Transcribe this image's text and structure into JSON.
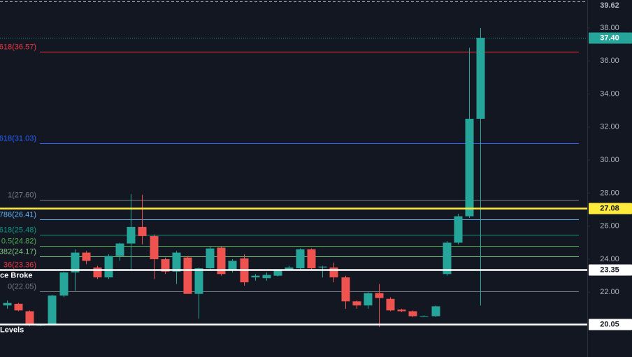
{
  "chart_data": {
    "type": "candlestick",
    "up_color": "#26a69a",
    "down_color": "#ef5350",
    "ylim": [
      18.08,
      39.69
    ],
    "yticks": [
      {
        "value": 22,
        "label": "22.00"
      },
      {
        "value": 24,
        "label": "24.00"
      },
      {
        "value": 26,
        "label": "26.00"
      },
      {
        "value": 28,
        "label": "28.00"
      },
      {
        "value": 30,
        "label": "30.00"
      },
      {
        "value": 32,
        "label": "32.00"
      },
      {
        "value": 34,
        "label": "34.00"
      },
      {
        "value": 36,
        "label": "36.00"
      },
      {
        "value": 38,
        "label": "38.00"
      }
    ],
    "grid": false,
    "open": [
      21.2,
      21.3,
      20.85,
      20.0,
      20.0,
      21.8,
      23.2,
      24.4,
      23.5,
      22.9,
      24.2,
      24.95,
      25.95,
      25.4,
      24.0,
      23.25,
      24.1,
      21.9,
      23.45,
      24.7,
      23.3,
      24.05,
      22.9,
      22.85,
      23.0,
      23.35,
      23.45,
      24.6,
      23.5,
      23.5,
      22.9,
      21.45,
      21.2,
      21.95,
      21.6,
      20.95,
      20.85,
      20.55,
      20.55,
      23.1,
      25.0,
      26.6,
      32.5
    ],
    "high": [
      21.5,
      21.35,
      20.9,
      20.05,
      21.85,
      23.25,
      24.6,
      24.5,
      23.6,
      24.3,
      25.0,
      27.95,
      27.9,
      25.5,
      24.1,
      24.5,
      24.2,
      23.5,
      24.75,
      24.75,
      24.0,
      24.3,
      23.1,
      23.2,
      23.4,
      23.6,
      24.65,
      24.65,
      23.6,
      23.8,
      23.0,
      21.5,
      22.0,
      22.5,
      21.7,
      21.0,
      20.9,
      20.6,
      21.2,
      25.1,
      26.75,
      36.8,
      38.0
    ],
    "low": [
      21.0,
      20.85,
      19.95,
      19.95,
      20.0,
      21.7,
      22.1,
      23.7,
      22.8,
      22.8,
      23.9,
      23.3,
      24.9,
      22.8,
      23.1,
      22.5,
      21.9,
      20.4,
      23.4,
      23.0,
      23.2,
      22.4,
      22.7,
      22.7,
      22.95,
      23.3,
      23.4,
      23.4,
      22.9,
      22.6,
      21.0,
      21.0,
      21.0,
      19.9,
      20.85,
      20.8,
      20.5,
      20.5,
      20.5,
      23.0,
      24.9,
      26.5,
      21.2
    ],
    "close": [
      21.35,
      20.9,
      20.0,
      20.02,
      21.8,
      23.2,
      24.4,
      23.9,
      22.9,
      24.2,
      24.95,
      25.95,
      25.4,
      24.0,
      23.25,
      24.4,
      21.9,
      23.45,
      24.65,
      23.1,
      23.9,
      22.6,
      23.0,
      23.05,
      23.35,
      23.5,
      24.6,
      23.45,
      23.55,
      22.9,
      21.45,
      21.2,
      21.95,
      21.65,
      20.9,
      20.85,
      20.55,
      20.55,
      21.15,
      25.0,
      26.6,
      32.5,
      37.4
    ],
    "fib_levels": [
      {
        "label": "618(36.57)",
        "value": 36.57,
        "color": "#f23645"
      },
      {
        "label": "618(31.03)",
        "value": 31.03,
        "color": "#2962ff"
      },
      {
        "label": "1(27.60)",
        "value": 27.6,
        "color": "#787b86"
      },
      {
        "label": "786(26.41)",
        "value": 26.41,
        "color": "#64b5f6"
      },
      {
        "label": "618(25.48)",
        "value": 25.48,
        "color": "#089981"
      },
      {
        "label": "0.5(24.82)",
        "value": 24.82,
        "color": "#4caf50"
      },
      {
        "label": "382(24.17)",
        "value": 24.17,
        "color": "#81c784"
      },
      {
        "label": "36(23.36)",
        "value": 23.36,
        "color": "#f23645"
      },
      {
        "label": "0(22.05)",
        "value": 22.05,
        "color": "#787b86"
      }
    ],
    "price_lines": [
      {
        "value": 39.62,
        "color": "#b2b5be",
        "style": "dashed"
      },
      {
        "value": {
          "value": 37.4,
          "label": "37.40"
        },
        "color": "#26a69a",
        "style": "dotted"
      },
      {
        "value": 27.08,
        "color": "#ffeb3b",
        "style": "solid"
      },
      {
        "value": 23.35,
        "color": "#ffffff",
        "style": "solid"
      },
      {
        "value": 20.05,
        "color": "#ffffff",
        "style": "solid"
      }
    ],
    "annotations": [
      {
        "text": "ce Broke",
        "value": 23.0
      },
      {
        "text": "Levels",
        "value": 19.7
      }
    ]
  }
}
